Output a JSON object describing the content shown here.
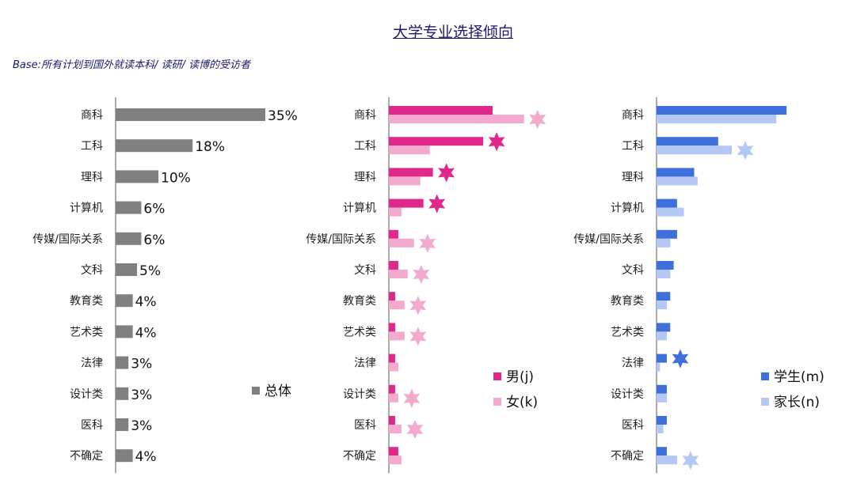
{
  "title": "大学专业选择倾向",
  "base": "Base:所有计划到国外就读本科/ 读研/ 读博的受访者",
  "chart_data": [
    {
      "type": "bar",
      "orientation": "horizontal",
      "categories": [
        "商科",
        "工科",
        "理科",
        "计算机",
        "传媒/国际关系",
        "文科",
        "教育类",
        "艺术类",
        "法律",
        "设计类",
        "医科",
        "不确定"
      ],
      "series": [
        {
          "name": "总体",
          "color": "#808080",
          "values": [
            35,
            18,
            10,
            6,
            6,
            5,
            4,
            4,
            3,
            3,
            3,
            4
          ],
          "labels": [
            "35%",
            "18%",
            "10%",
            "6%",
            "6%",
            "5%",
            "4%",
            "4%",
            "3%",
            "3%",
            "3%",
            "4%"
          ]
        }
      ],
      "legend": "lower-right"
    },
    {
      "type": "bar",
      "orientation": "horizontal",
      "categories": [
        "商科",
        "工科",
        "理科",
        "计算机",
        "传媒/国际关系",
        "文科",
        "教育类",
        "艺术类",
        "法律",
        "设计类",
        "医科",
        "不确定"
      ],
      "series": [
        {
          "name": "男(j)",
          "color": "#e0288a",
          "values": [
            33,
            30,
            14,
            11,
            3,
            3,
            2,
            2,
            2,
            2,
            2,
            3
          ],
          "highlight": [
            false,
            true,
            true,
            true,
            false,
            false,
            false,
            false,
            false,
            false,
            false,
            false
          ]
        },
        {
          "name": "女(k)",
          "color": "#f4a9cf",
          "values": [
            43,
            13,
            10,
            4,
            8,
            6,
            5,
            5,
            3,
            3,
            4,
            4
          ],
          "highlight": [
            true,
            false,
            false,
            false,
            true,
            true,
            true,
            true,
            false,
            true,
            true,
            false
          ]
        }
      ],
      "legend": "lower-right"
    },
    {
      "type": "bar",
      "orientation": "horizontal",
      "categories": [
        "商科",
        "工科",
        "理科",
        "计算机",
        "传媒/国际关系",
        "文科",
        "教育类",
        "艺术类",
        "法律",
        "设计类",
        "医科",
        "不确定"
      ],
      "series": [
        {
          "name": "学生(m)",
          "color": "#3f6fdc",
          "values": [
            38,
            18,
            11,
            6,
            6,
            5,
            4,
            4,
            3,
            3,
            3,
            3
          ],
          "highlight": [
            false,
            false,
            false,
            false,
            false,
            false,
            false,
            false,
            true,
            false,
            false,
            false
          ]
        },
        {
          "name": "家长(n)",
          "color": "#b4c7f5",
          "values": [
            35,
            22,
            12,
            8,
            4,
            4,
            3,
            3,
            1,
            3,
            2,
            6
          ],
          "highlight": [
            false,
            true,
            false,
            false,
            false,
            false,
            false,
            false,
            false,
            false,
            false,
            true
          ]
        }
      ],
      "legend": "lower-right"
    }
  ]
}
